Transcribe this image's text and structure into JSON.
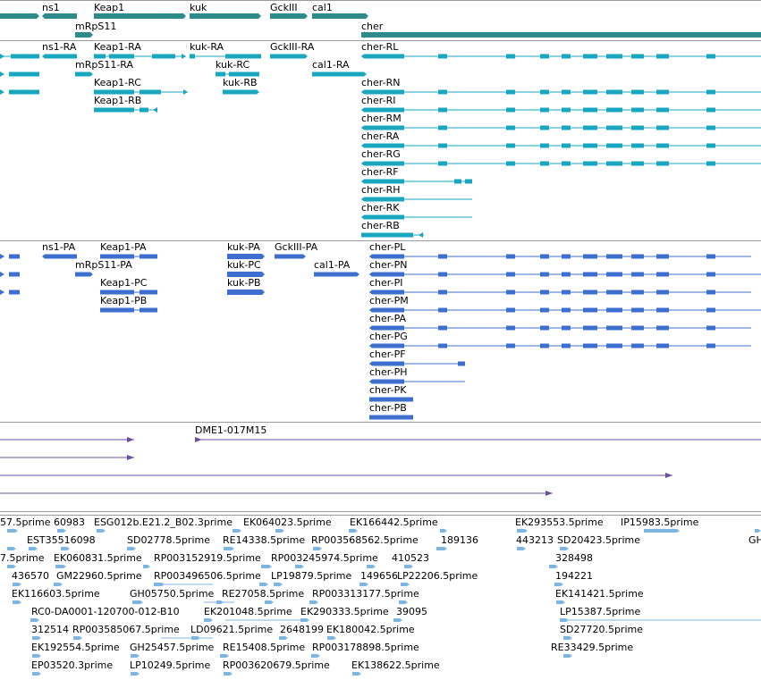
{
  "colors": {
    "gene": "#2e8b8b",
    "transcript": "#19a7c0",
    "protein": "#3c6fce",
    "clone": "#6a4f9c",
    "est": "#7db6e0"
  },
  "genes": [
    {
      "label": "ns1"
    },
    {
      "label": "Keap1"
    },
    {
      "label": "kuk"
    },
    {
      "label": "GckIII"
    },
    {
      "label": "cal1"
    },
    {
      "label": "mRpS11"
    },
    {
      "label": "cher"
    }
  ],
  "transcripts": [
    {
      "label": "ns1-RA"
    },
    {
      "label": "Keap1-RA"
    },
    {
      "label": "kuk-RA"
    },
    {
      "label": "GckIII-RA"
    },
    {
      "label": "cher-RL"
    },
    {
      "label": "mRpS11-RA"
    },
    {
      "label": "kuk-RC"
    },
    {
      "label": "cal1-RA"
    },
    {
      "label": "Keap1-RC"
    },
    {
      "label": "kuk-RB"
    },
    {
      "label": "cher-RN"
    },
    {
      "label": "Keap1-RB"
    },
    {
      "label": "cher-RI"
    },
    {
      "label": "cher-RM"
    },
    {
      "label": "cher-RA"
    },
    {
      "label": "cher-RG"
    },
    {
      "label": "cher-RF"
    },
    {
      "label": "cher-RH"
    },
    {
      "label": "cher-RK"
    },
    {
      "label": "cher-RB"
    }
  ],
  "proteins": [
    {
      "label": "ns1-PA"
    },
    {
      "label": "Keap1-PA"
    },
    {
      "label": "kuk-PA"
    },
    {
      "label": "GckIII-PA"
    },
    {
      "label": "cher-PL"
    },
    {
      "label": "mRpS11-PA"
    },
    {
      "label": "kuk-PC"
    },
    {
      "label": "cal1-PA"
    },
    {
      "label": "cher-PN"
    },
    {
      "label": "Keap1-PC"
    },
    {
      "label": "kuk-PB"
    },
    {
      "label": "cher-PI"
    },
    {
      "label": "Keap1-PB"
    },
    {
      "label": "cher-PM"
    },
    {
      "label": "cher-PA"
    },
    {
      "label": "cher-PG"
    },
    {
      "label": "cher-PF"
    },
    {
      "label": "cher-PH"
    },
    {
      "label": "cher-PK"
    },
    {
      "label": "cher-PB"
    }
  ],
  "clones": [
    {
      "label": "DME1-017M15"
    }
  ],
  "ests": [
    {
      "label": "57.5prime"
    },
    {
      "label": "60983"
    },
    {
      "label": "ESG012b.E21.2_B02.3prime"
    },
    {
      "label": "EK064023.5prime"
    },
    {
      "label": "EK166442.5prime"
    },
    {
      "label": "EK293553.5prime"
    },
    {
      "label": "IP15983.5prime"
    },
    {
      "label": "GH"
    },
    {
      "label": "EST35516098"
    },
    {
      "label": "SD02778.5prime"
    },
    {
      "label": "RE14338.5prime"
    },
    {
      "label": "RP003568562.5prime"
    },
    {
      "label": "189136"
    },
    {
      "label": "443213"
    },
    {
      "label": "SD20423.5prime"
    },
    {
      "label": "7.5prime"
    },
    {
      "label": "EK060831.5prime"
    },
    {
      "label": "RP003152919.5prime"
    },
    {
      "label": "RP003245974.5prime"
    },
    {
      "label": "410523"
    },
    {
      "label": "328498"
    },
    {
      "label": "436570"
    },
    {
      "label": "GM22960.5prime"
    },
    {
      "label": "RP003496506.5prime"
    },
    {
      "label": "LP19879.5prime"
    },
    {
      "label": "149656"
    },
    {
      "label": "LP22206.5prime"
    },
    {
      "label": "194221"
    },
    {
      "label": "EK116603.5prime"
    },
    {
      "label": "GH05750.5prime"
    },
    {
      "label": "RE27058.5prime"
    },
    {
      "label": "RP003313177.5prime"
    },
    {
      "label": "EK141421.5prime"
    },
    {
      "label": "RC0-DA0001-120700-012-B10"
    },
    {
      "label": "EK201048.5prime"
    },
    {
      "label": "EK290333.5prime"
    },
    {
      "label": "39095"
    },
    {
      "label": "LP15387.5prime"
    },
    {
      "label": "312514"
    },
    {
      "label": "RP003585067.5prime"
    },
    {
      "label": "LD09621.5prime"
    },
    {
      "label": "2648199"
    },
    {
      "label": "EK180042.5prime"
    },
    {
      "label": "SD27720.5prime"
    },
    {
      "label": "EK192554.5prime"
    },
    {
      "label": "GH25457.5prime"
    },
    {
      "label": "RE15408.5prime"
    },
    {
      "label": "RP003178898.5prime"
    },
    {
      "label": "RE33429.5prime"
    },
    {
      "label": "EP03520.3prime"
    },
    {
      "label": "LP10249.5prime"
    },
    {
      "label": "RP003620679.5prime"
    },
    {
      "label": "EK138622.5prime"
    }
  ]
}
